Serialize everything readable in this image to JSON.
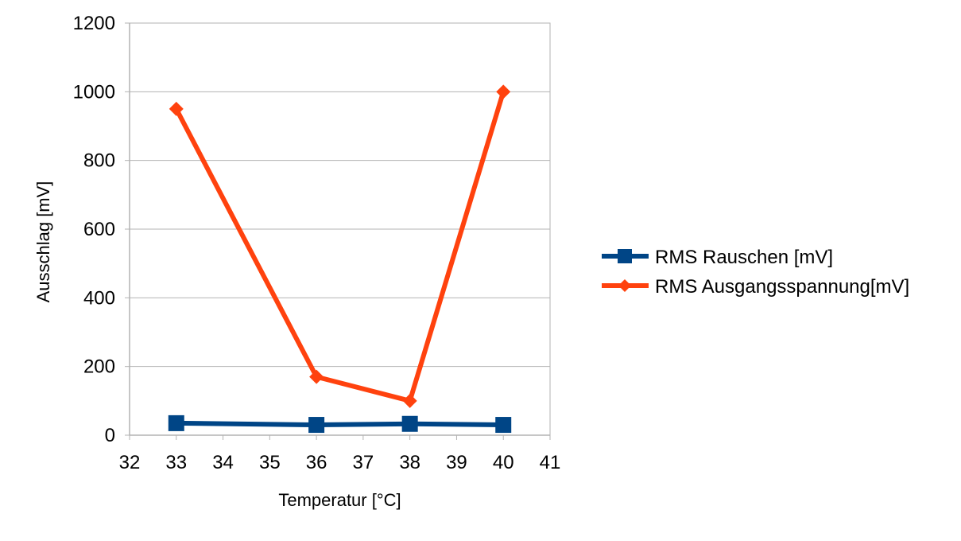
{
  "chart_data": {
    "type": "line",
    "title": "",
    "xlabel": "Temperatur [°C]",
    "ylabel": "Ausschlag [mV]",
    "xlim": [
      32,
      41
    ],
    "ylim": [
      0,
      1200
    ],
    "xticks": [
      32,
      33,
      34,
      35,
      36,
      37,
      38,
      39,
      40,
      41
    ],
    "yticks": [
      0,
      200,
      400,
      600,
      800,
      1000,
      1200
    ],
    "grid": true,
    "legend_position": "right",
    "series": [
      {
        "name": "RMS Rauschen [mV]",
        "color": "#004586",
        "marker": "square",
        "points": [
          [
            33,
            35
          ],
          [
            36,
            30
          ],
          [
            38,
            33
          ],
          [
            40,
            30
          ]
        ]
      },
      {
        "name": "RMS Ausgangsspannung[mV]",
        "color": "#ff420e",
        "marker": "diamond",
        "points": [
          [
            33,
            950
          ],
          [
            36,
            170
          ],
          [
            38,
            100
          ],
          [
            40,
            1000
          ]
        ]
      }
    ]
  }
}
